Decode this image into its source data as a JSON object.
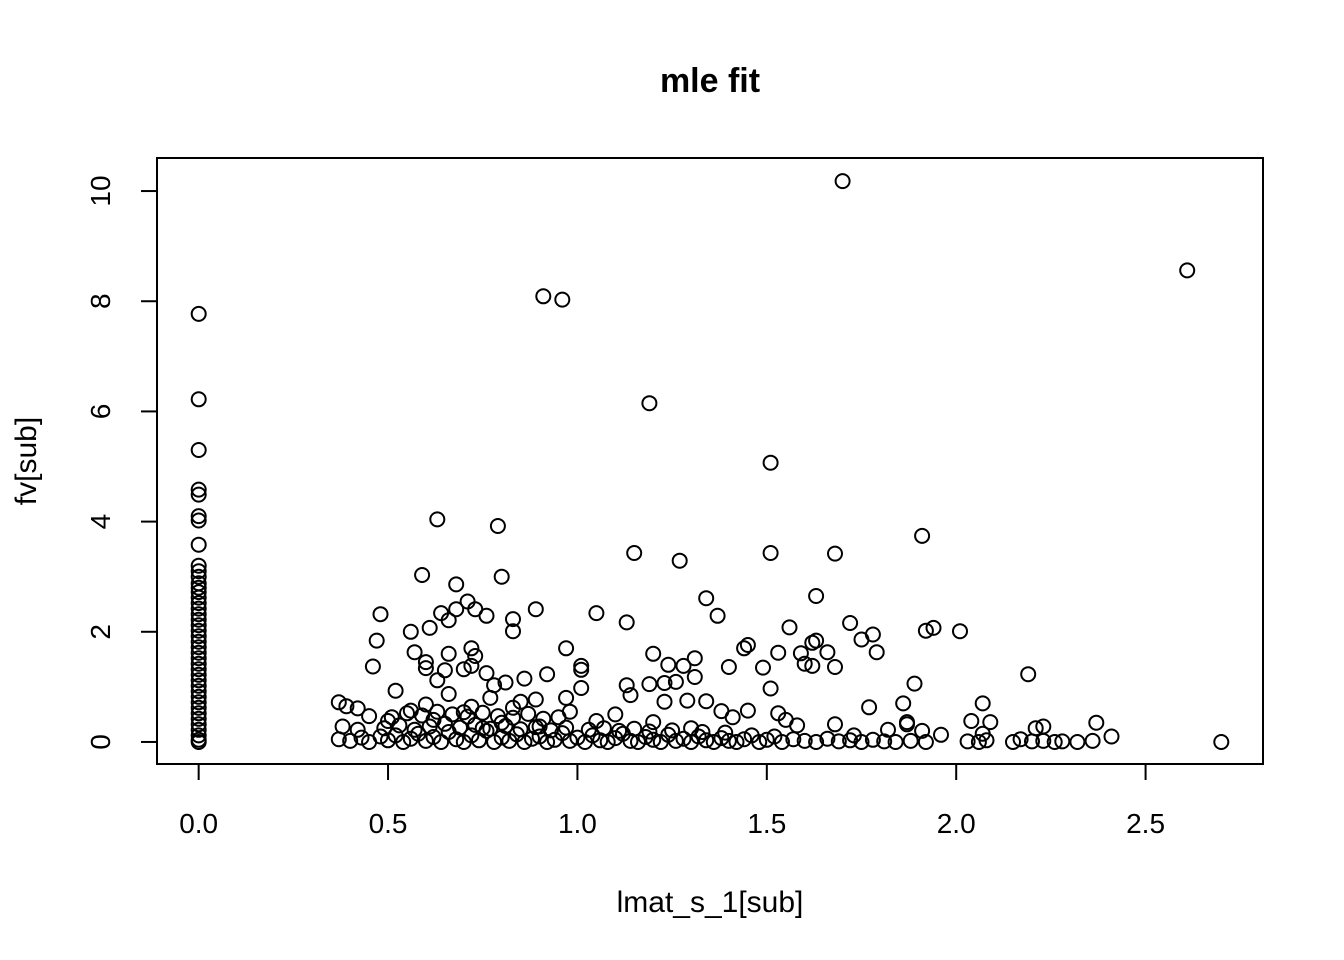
{
  "chart_data": {
    "type": "scatter",
    "title": "mle fit",
    "xlabel": "lmat_s_1[sub]",
    "ylabel": "fv[sub]",
    "xlim": [
      -0.11,
      2.81
    ],
    "ylim": [
      -0.4,
      10.6
    ],
    "xticks": [
      0.0,
      0.5,
      1.0,
      1.5,
      2.0,
      2.5
    ],
    "xtick_labels": [
      "0.0",
      "0.5",
      "1.0",
      "1.5",
      "2.0",
      "2.5"
    ],
    "yticks": [
      0,
      2,
      4,
      6,
      8,
      10
    ],
    "ytick_labels": [
      "0",
      "2",
      "4",
      "6",
      "8",
      "10"
    ],
    "grid": false,
    "marker": "open-circle",
    "points": [
      [
        0,
        7.77
      ],
      [
        0,
        6.22
      ],
      [
        0,
        5.3
      ],
      [
        0,
        4.58
      ],
      [
        0,
        4.49
      ],
      [
        0,
        4.1
      ],
      [
        0,
        4.02
      ],
      [
        0,
        3.58
      ],
      [
        0,
        3.2
      ],
      [
        0,
        3.1
      ],
      [
        0,
        3.0
      ],
      [
        0,
        2.88
      ],
      [
        0,
        2.8
      ],
      [
        0,
        2.72
      ],
      [
        0,
        2.62
      ],
      [
        0,
        2.52
      ],
      [
        0,
        2.42
      ],
      [
        0,
        2.32
      ],
      [
        0,
        2.22
      ],
      [
        0,
        2.12
      ],
      [
        0,
        2.02
      ],
      [
        0,
        1.92
      ],
      [
        0,
        1.82
      ],
      [
        0,
        1.72
      ],
      [
        0,
        1.62
      ],
      [
        0,
        1.52
      ],
      [
        0,
        1.42
      ],
      [
        0,
        1.32
      ],
      [
        0,
        1.22
      ],
      [
        0,
        1.12
      ],
      [
        0,
        1.02
      ],
      [
        0,
        0.92
      ],
      [
        0,
        0.82
      ],
      [
        0,
        0.72
      ],
      [
        0,
        0.62
      ],
      [
        0,
        0.52
      ],
      [
        0,
        0.42
      ],
      [
        0,
        0.32
      ],
      [
        0,
        0.22
      ],
      [
        0,
        0.12
      ],
      [
        0,
        0.04
      ],
      [
        0,
        0.0
      ],
      [
        1.7,
        10.18
      ],
      [
        2.61,
        8.56
      ],
      [
        0.91,
        8.09
      ],
      [
        0.96,
        8.03
      ],
      [
        1.19,
        6.15
      ],
      [
        1.51,
        5.07
      ],
      [
        0.63,
        4.04
      ],
      [
        0.79,
        3.92
      ],
      [
        1.91,
        3.74
      ],
      [
        1.15,
        3.43
      ],
      [
        1.51,
        3.43
      ],
      [
        1.68,
        3.42
      ],
      [
        1.27,
        3.29
      ],
      [
        0.59,
        3.03
      ],
      [
        0.8,
        3.0
      ],
      [
        0.68,
        2.86
      ],
      [
        1.34,
        2.61
      ],
      [
        0.71,
        2.55
      ],
      [
        1.63,
        2.65
      ],
      [
        0.73,
        2.41
      ],
      [
        0.89,
        2.41
      ],
      [
        0.68,
        2.41
      ],
      [
        1.05,
        2.34
      ],
      [
        0.64,
        2.34
      ],
      [
        0.76,
        2.29
      ],
      [
        1.37,
        2.29
      ],
      [
        0.83,
        2.23
      ],
      [
        1.13,
        2.17
      ],
      [
        1.72,
        2.16
      ],
      [
        0.66,
        2.21
      ],
      [
        0.48,
        2.32
      ],
      [
        1.56,
        2.08
      ],
      [
        1.94,
        2.07
      ],
      [
        1.92,
        2.02
      ],
      [
        2.01,
        2.01
      ],
      [
        0.83,
        2.01
      ],
      [
        0.61,
        2.07
      ],
      [
        0.56,
        2.0
      ],
      [
        1.78,
        1.95
      ],
      [
        1.75,
        1.86
      ],
      [
        0.47,
        1.84
      ],
      [
        1.63,
        1.84
      ],
      [
        1.45,
        1.76
      ],
      [
        1.62,
        1.8
      ],
      [
        1.44,
        1.7
      ],
      [
        0.97,
        1.7
      ],
      [
        0.72,
        1.7
      ],
      [
        1.2,
        1.6
      ],
      [
        1.53,
        1.62
      ],
      [
        1.66,
        1.63
      ],
      [
        1.79,
        1.63
      ],
      [
        1.59,
        1.61
      ],
      [
        0.73,
        1.56
      ],
      [
        0.66,
        1.6
      ],
      [
        0.57,
        1.63
      ],
      [
        1.31,
        1.52
      ],
      [
        1.24,
        1.4
      ],
      [
        1.6,
        1.42
      ],
      [
        1.4,
        1.36
      ],
      [
        1.62,
        1.38
      ],
      [
        1.49,
        1.35
      ],
      [
        1.68,
        1.36
      ],
      [
        1.28,
        1.38
      ],
      [
        1.01,
        1.38
      ],
      [
        0.6,
        1.45
      ],
      [
        0.72,
        1.38
      ],
      [
        0.46,
        1.37
      ],
      [
        1.01,
        1.31
      ],
      [
        2.19,
        1.23
      ],
      [
        0.92,
        1.23
      ],
      [
        1.31,
        1.18
      ],
      [
        0.76,
        1.25
      ],
      [
        0.7,
        1.32
      ],
      [
        0.65,
        1.3
      ],
      [
        0.6,
        1.34
      ],
      [
        1.89,
        1.06
      ],
      [
        1.26,
        1.09
      ],
      [
        1.23,
        1.07
      ],
      [
        1.19,
        1.05
      ],
      [
        1.13,
        1.03
      ],
      [
        0.81,
        1.08
      ],
      [
        0.86,
        1.15
      ],
      [
        1.01,
        0.98
      ],
      [
        1.51,
        0.97
      ],
      [
        0.63,
        1.12
      ],
      [
        0.78,
        1.03
      ],
      [
        0.52,
        0.93
      ],
      [
        1.14,
        0.85
      ],
      [
        0.97,
        0.8
      ],
      [
        0.89,
        0.77
      ],
      [
        0.66,
        0.87
      ],
      [
        0.77,
        0.8
      ],
      [
        0.85,
        0.73
      ],
      [
        1.23,
        0.73
      ],
      [
        1.29,
        0.75
      ],
      [
        1.34,
        0.74
      ],
      [
        1.86,
        0.7
      ],
      [
        2.07,
        0.7
      ],
      [
        0.37,
        0.72
      ],
      [
        0.39,
        0.65
      ],
      [
        0.42,
        0.61
      ],
      [
        1.77,
        0.63
      ],
      [
        0.6,
        0.68
      ],
      [
        0.72,
        0.64
      ],
      [
        0.83,
        0.62
      ],
      [
        1.45,
        0.57
      ],
      [
        1.38,
        0.56
      ],
      [
        1.53,
        0.52
      ],
      [
        1.1,
        0.5
      ],
      [
        0.98,
        0.55
      ],
      [
        0.45,
        0.47
      ],
      [
        0.56,
        0.57
      ],
      [
        0.7,
        0.54
      ],
      [
        1.41,
        0.45
      ],
      [
        1.55,
        0.4
      ],
      [
        1.87,
        0.36
      ],
      [
        1.87,
        0.32
      ],
      [
        2.04,
        0.38
      ],
      [
        2.09,
        0.36
      ],
      [
        2.37,
        0.35
      ],
      [
        0.5,
        0.38
      ],
      [
        0.62,
        0.4
      ],
      [
        0.8,
        0.35
      ],
      [
        1.05,
        0.38
      ],
      [
        1.2,
        0.36
      ],
      [
        1.68,
        0.32
      ],
      [
        0.38,
        0.28
      ],
      [
        1.58,
        0.3
      ],
      [
        2.23,
        0.28
      ],
      [
        2.21,
        0.25
      ],
      [
        1.91,
        0.2
      ],
      [
        1.82,
        0.22
      ],
      [
        0.75,
        0.25
      ],
      [
        0.9,
        0.28
      ],
      [
        1.3,
        0.25
      ],
      [
        0.42,
        0.22
      ],
      [
        2.07,
        0.15
      ],
      [
        1.96,
        0.13
      ],
      [
        2.41,
        0.1
      ],
      [
        1.73,
        0.12
      ],
      [
        1.52,
        0.1
      ],
      [
        0.37,
        0.05
      ],
      [
        0.4,
        0.02
      ],
      [
        0.43,
        0.08
      ],
      [
        0.45,
        0.0
      ],
      [
        0.48,
        0.1
      ],
      [
        0.5,
        0.03
      ],
      [
        0.52,
        0.12
      ],
      [
        0.54,
        0.0
      ],
      [
        0.56,
        0.06
      ],
      [
        0.58,
        0.15
      ],
      [
        0.6,
        0.02
      ],
      [
        0.62,
        0.09
      ],
      [
        0.64,
        0.0
      ],
      [
        0.66,
        0.18
      ],
      [
        0.68,
        0.05
      ],
      [
        0.7,
        0.0
      ],
      [
        0.72,
        0.12
      ],
      [
        0.74,
        0.03
      ],
      [
        0.76,
        0.2
      ],
      [
        0.78,
        0.0
      ],
      [
        0.8,
        0.08
      ],
      [
        0.82,
        0.02
      ],
      [
        0.84,
        0.14
      ],
      [
        0.86,
        0.0
      ],
      [
        0.88,
        0.06
      ],
      [
        0.9,
        0.1
      ],
      [
        0.92,
        0.0
      ],
      [
        0.94,
        0.04
      ],
      [
        0.96,
        0.16
      ],
      [
        0.98,
        0.02
      ],
      [
        1.0,
        0.08
      ],
      [
        1.02,
        0.0
      ],
      [
        1.04,
        0.12
      ],
      [
        1.06,
        0.03
      ],
      [
        1.08,
        0.0
      ],
      [
        1.1,
        0.07
      ],
      [
        1.12,
        0.15
      ],
      [
        1.14,
        0.02
      ],
      [
        1.16,
        0.0
      ],
      [
        1.18,
        0.09
      ],
      [
        1.2,
        0.04
      ],
      [
        1.22,
        0.0
      ],
      [
        1.24,
        0.13
      ],
      [
        1.26,
        0.02
      ],
      [
        1.28,
        0.06
      ],
      [
        1.3,
        0.0
      ],
      [
        1.32,
        0.1
      ],
      [
        1.34,
        0.03
      ],
      [
        1.36,
        0.0
      ],
      [
        1.38,
        0.07
      ],
      [
        1.4,
        0.02
      ],
      [
        1.42,
        0.0
      ],
      [
        1.44,
        0.05
      ],
      [
        1.46,
        0.12
      ],
      [
        1.48,
        0.0
      ],
      [
        1.5,
        0.04
      ],
      [
        1.54,
        0.0
      ],
      [
        1.57,
        0.05
      ],
      [
        1.6,
        0.02
      ],
      [
        1.63,
        0.0
      ],
      [
        1.66,
        0.06
      ],
      [
        1.69,
        0.01
      ],
      [
        1.72,
        0.03
      ],
      [
        1.75,
        0.0
      ],
      [
        1.78,
        0.04
      ],
      [
        1.81,
        0.01
      ],
      [
        1.84,
        0.0
      ],
      [
        1.88,
        0.02
      ],
      [
        1.92,
        0.0
      ],
      [
        2.03,
        0.01
      ],
      [
        2.06,
        0.0
      ],
      [
        2.08,
        0.03
      ],
      [
        2.15,
        0.0
      ],
      [
        2.17,
        0.05
      ],
      [
        2.2,
        0.01
      ],
      [
        2.23,
        0.02
      ],
      [
        2.26,
        0.0
      ],
      [
        2.28,
        0.01
      ],
      [
        2.32,
        0.0
      ],
      [
        2.36,
        0.02
      ],
      [
        2.7,
        0.0
      ],
      [
        0.49,
        0.25
      ],
      [
        0.53,
        0.3
      ],
      [
        0.57,
        0.22
      ],
      [
        0.61,
        0.28
      ],
      [
        0.65,
        0.33
      ],
      [
        0.69,
        0.26
      ],
      [
        0.73,
        0.31
      ],
      [
        0.77,
        0.24
      ],
      [
        0.81,
        0.29
      ],
      [
        0.85,
        0.23
      ],
      [
        0.89,
        0.27
      ],
      [
        0.93,
        0.21
      ],
      [
        0.97,
        0.26
      ],
      [
        1.03,
        0.22
      ],
      [
        1.07,
        0.25
      ],
      [
        1.11,
        0.2
      ],
      [
        1.15,
        0.24
      ],
      [
        1.19,
        0.19
      ],
      [
        1.25,
        0.21
      ],
      [
        1.33,
        0.18
      ],
      [
        1.39,
        0.17
      ],
      [
        0.51,
        0.45
      ],
      [
        0.55,
        0.52
      ],
      [
        0.59,
        0.48
      ],
      [
        0.63,
        0.55
      ],
      [
        0.67,
        0.5
      ],
      [
        0.71,
        0.46
      ],
      [
        0.75,
        0.53
      ],
      [
        0.79,
        0.47
      ],
      [
        0.83,
        0.44
      ],
      [
        0.87,
        0.51
      ],
      [
        0.91,
        0.42
      ],
      [
        0.95,
        0.45
      ]
    ]
  }
}
